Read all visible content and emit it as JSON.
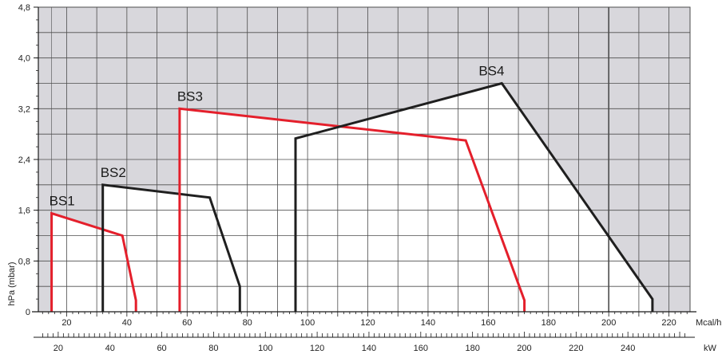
{
  "chart_data": {
    "type": "area",
    "title": "",
    "ylabel": "hPa (mbar)",
    "x_unit_primary": "Mcal/h",
    "x_unit_secondary": "kW",
    "xlim": [
      10.6,
      227
    ],
    "ylim": [
      0,
      4.8
    ],
    "y_ticks": [
      {
        "value": 0,
        "label": "0"
      },
      {
        "value": 0.8,
        "label": "0,8"
      },
      {
        "value": 1.6,
        "label": "1,6"
      },
      {
        "value": 2.4,
        "label": "2,4"
      },
      {
        "value": 3.2,
        "label": "3,2"
      },
      {
        "value": 4.0,
        "label": "4,0"
      },
      {
        "value": 4.8,
        "label": "4,8"
      }
    ],
    "x_ticks_primary": [
      {
        "value": 20,
        "label": "20"
      },
      {
        "value": 40,
        "label": "40"
      },
      {
        "value": 60,
        "label": "60"
      },
      {
        "value": 80,
        "label": "80"
      },
      {
        "value": 100,
        "label": "100"
      },
      {
        "value": 120,
        "label": "120"
      },
      {
        "value": 140,
        "label": "140"
      },
      {
        "value": 160,
        "label": "160"
      },
      {
        "value": 180,
        "label": "180"
      },
      {
        "value": 200,
        "label": "200"
      },
      {
        "value": 220,
        "label": "220"
      }
    ],
    "x_ticks_secondary": [
      {
        "value": 20,
        "label": "20"
      },
      {
        "value": 40,
        "label": "40"
      },
      {
        "value": 60,
        "label": "60"
      },
      {
        "value": 80,
        "label": "80"
      },
      {
        "value": 100,
        "label": "100"
      },
      {
        "value": 120,
        "label": "120"
      },
      {
        "value": 140,
        "label": "140"
      },
      {
        "value": 160,
        "label": "160"
      },
      {
        "value": 180,
        "label": "180"
      },
      {
        "value": 200,
        "label": "200"
      },
      {
        "value": 220,
        "label": "220"
      },
      {
        "value": 240,
        "label": "240"
      }
    ],
    "kw_per_mcal": 1.163,
    "grid": true,
    "colors": {
      "outside": "#d8d7dc",
      "inside": "#ffffff",
      "grid": "#4d4d4d",
      "series_red": "#e41f2b",
      "series_black": "#1f1f1f",
      "axis": "#1a1a1a"
    },
    "series": [
      {
        "name": "BS1",
        "color": "#e41f2b",
        "points": [
          [
            15.0,
            0
          ],
          [
            15.0,
            1.55
          ],
          [
            38.5,
            1.2
          ],
          [
            43.0,
            0.18
          ],
          [
            43.0,
            0
          ]
        ]
      },
      {
        "name": "BS2",
        "color": "#1f1f1f",
        "points": [
          [
            32.0,
            0
          ],
          [
            32.0,
            2.0
          ],
          [
            67.5,
            1.8
          ],
          [
            77.5,
            0.4
          ],
          [
            77.5,
            0
          ]
        ]
      },
      {
        "name": "BS3",
        "color": "#e41f2b",
        "points": [
          [
            57.5,
            0
          ],
          [
            57.5,
            3.2
          ],
          [
            152.5,
            2.7
          ],
          [
            172.0,
            0.18
          ],
          [
            172.0,
            0
          ]
        ]
      },
      {
        "name": "BS4",
        "color": "#1f1f1f",
        "points": [
          [
            96.0,
            0
          ],
          [
            96.0,
            2.73
          ],
          [
            164.5,
            3.6
          ],
          [
            214.5,
            0.2
          ],
          [
            214.5,
            0
          ]
        ]
      }
    ]
  }
}
